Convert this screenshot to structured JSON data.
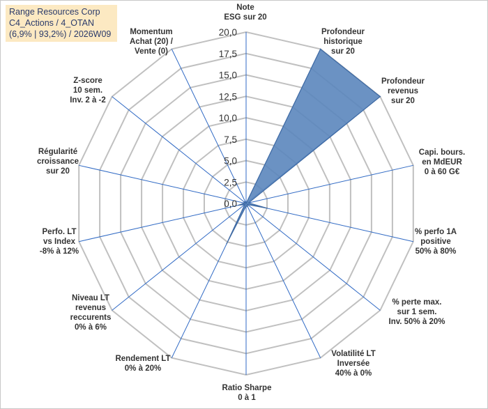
{
  "title": {
    "line1": "Range Resources Corp",
    "line2": "C4_Actions / 4_OTAN",
    "line3": "(6,9% | 93,2%) / 2026W09"
  },
  "colors": {
    "fill": "#5b86bd",
    "stroke": "#3f6aa3",
    "grid": "#c0c0c0",
    "spoke": "#2f69c4",
    "title_bg": "#fce9c2"
  },
  "chart_data": {
    "type": "radar",
    "rmin": 0,
    "rmax": 20,
    "tick_step": 2.5,
    "tick_labels": [
      "0,0",
      "2,5",
      "5,0",
      "7,5",
      "10,0",
      "12,5",
      "15,0",
      "17,5",
      "20,0"
    ],
    "axes": [
      [
        "Note",
        "ESG sur 20"
      ],
      [
        "Profondeur",
        "historique",
        "sur 20"
      ],
      [
        "Profondeur",
        "revenus",
        "sur 20"
      ],
      [
        "Capi. bours.",
        "en MdEUR",
        "0 à 60 G€"
      ],
      [
        "% perfo 1A",
        "positive",
        "50% à 80%"
      ],
      [
        "% perte max.",
        "sur 1 sem.",
        "Inv. 50% à 20%"
      ],
      [
        "Volatilité LT",
        "Inversée",
        "40% à 0%"
      ],
      [
        "Ratio Sharpe",
        "0 à 1"
      ],
      [
        "Rendement LT",
        "0% à 20%"
      ],
      [
        "Niveau LT",
        "revenus",
        "reccurents",
        "0% à 6%"
      ],
      [
        "Perfo. LT",
        "vs Index",
        "-8% à 12%"
      ],
      [
        "Régularité",
        "croissance",
        "sur 20"
      ],
      [
        "Z-score",
        "10 sem.",
        "Inv. 2 à -2"
      ],
      [
        "Momentum",
        "Achat (20) /",
        "Vente (0)"
      ]
    ],
    "values": [
      0,
      20,
      20,
      0.3,
      2.5,
      0.2,
      0.4,
      0.3,
      5.2,
      0.2,
      0.9,
      0.2,
      0.3,
      0.2
    ]
  }
}
